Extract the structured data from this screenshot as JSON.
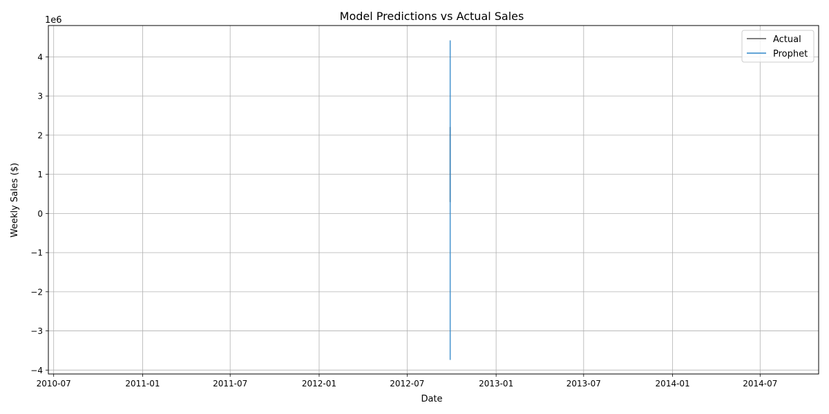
{
  "chart_data": {
    "type": "line",
    "title": "Model Predictions vs Actual Sales",
    "xlabel": "Date",
    "ylabel": "Weekly Sales ($)",
    "y_offset_text": "1e6",
    "x_scale": "date",
    "xlim": [
      "2010-06-20",
      "2014-10-30"
    ],
    "ylim": [
      -4100000,
      4800000
    ],
    "x_ticks": [
      "2010-07-01",
      "2011-01-01",
      "2011-07-01",
      "2012-01-01",
      "2012-07-01",
      "2013-01-01",
      "2013-07-01",
      "2014-01-01",
      "2014-07-01"
    ],
    "x_tick_labels": [
      "2010-07",
      "2011-01",
      "2011-07",
      "2012-01",
      "2012-07",
      "2013-01",
      "2013-07",
      "2014-01",
      "2014-07"
    ],
    "y_ticks": [
      -4,
      -3,
      -2,
      -1,
      0,
      1,
      2,
      3,
      4
    ],
    "y_tick_labels": [
      "−4",
      "−3",
      "−2",
      "−1",
      "0",
      "1",
      "2",
      "3",
      "4"
    ],
    "grid": true,
    "legend_position": "top-right",
    "series": [
      {
        "name": "Actual",
        "color": "#555555",
        "x": [
          "2012-09-28",
          "2012-09-28",
          "2012-09-28",
          "2012-09-28",
          "2012-09-28",
          "2012-09-28"
        ],
        "y": [
          1500000,
          2200000,
          400000,
          1800000,
          300000,
          1200000
        ]
      },
      {
        "name": "Prophet",
        "color": "#2e86c8",
        "x": [
          "2012-09-28",
          "2012-09-28",
          "2012-09-28",
          "2012-09-28",
          "2012-09-28",
          "2012-09-28",
          "2012-09-28",
          "2012-09-28"
        ],
        "y": [
          4420000,
          -3730000,
          3100000,
          -2000000,
          2500000,
          -300000,
          1900000,
          600000
        ]
      }
    ]
  }
}
